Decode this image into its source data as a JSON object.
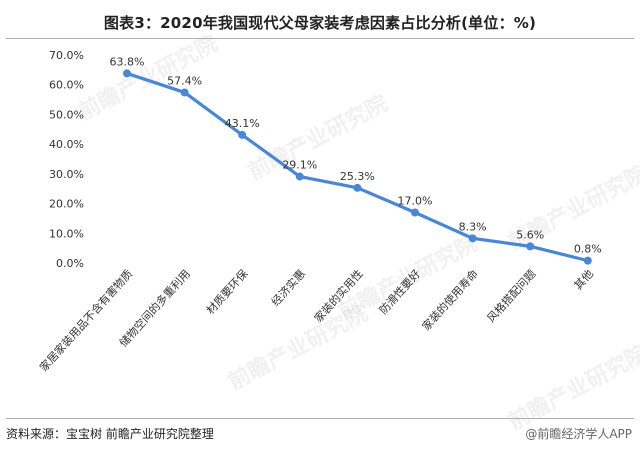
{
  "title": "图表3：2020年我国现代父母家装考虑因素占比分析(单位：%)",
  "source": "资料来源：宝宝树 前瞻产业研究院整理",
  "brand": "@前瞻经济学人APP",
  "watermark": "前瞻产业研究院",
  "colors": {
    "line": "#4a86d6"
  },
  "chart_data": {
    "type": "line",
    "title": "图表3：2020年我国现代父母家装考虑因素占比分析(单位：%)",
    "xlabel": "",
    "ylabel": "",
    "ylim": [
      0,
      70
    ],
    "yticks": [
      "0.0%",
      "10.0%",
      "20.0%",
      "30.0%",
      "40.0%",
      "50.0%",
      "60.0%",
      "70.0%"
    ],
    "categories": [
      "家居家装用品不含有害物质",
      "储物空间的多重利用",
      "材质要环保",
      "经济实惠",
      "家装的实用性",
      "防滑性要好",
      "家装的使用寿命",
      "风格搭配问题",
      "其他"
    ],
    "values": [
      63.8,
      57.4,
      43.1,
      29.1,
      25.3,
      17.0,
      8.3,
      5.6,
      0.8
    ],
    "value_labels": [
      "63.8%",
      "57.4%",
      "43.1%",
      "29.1%",
      "25.3%",
      "17.0%",
      "8.3%",
      "5.6%",
      "0.8%"
    ],
    "grid": false,
    "legend": "none"
  }
}
